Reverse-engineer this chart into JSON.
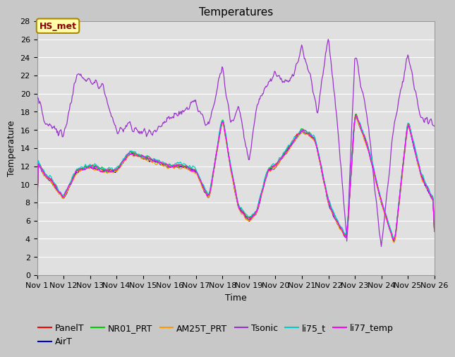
{
  "title": "Temperatures",
  "xlabel": "Time",
  "ylabel": "Temperature",
  "ylim": [
    0,
    28
  ],
  "yticks": [
    0,
    2,
    4,
    6,
    8,
    10,
    12,
    14,
    16,
    18,
    20,
    22,
    24,
    26,
    28
  ],
  "xtick_positions": [
    0,
    1,
    2,
    3,
    4,
    5,
    6,
    7,
    8,
    9,
    10,
    11,
    12,
    13,
    14,
    15
  ],
  "xtick_labels": [
    "Nov 1",
    "Nov 12",
    "Nov 13",
    "Nov 14",
    "Nov 15",
    "Nov 16",
    "Nov 17",
    "Nov 18",
    "Nov 19",
    "Nov 20",
    "Nov 21",
    "Nov 22",
    "Nov 23",
    "Nov 24",
    "Nov 25",
    "Nov 26"
  ],
  "series_colors": {
    "PanelT": "#ff0000",
    "AirT": "#0000cc",
    "NR01_PRT": "#00cc00",
    "AM25T_PRT": "#ff9900",
    "Tsonic": "#9933cc",
    "li75_t": "#00cccc",
    "li77_temp": "#ff00ff"
  },
  "annotation_text": "HS_met",
  "fig_bg_color": "#c8c8c8",
  "plot_bg_color": "#e0e0e0",
  "grid_color": "#ffffff",
  "title_fontsize": 11,
  "axis_fontsize": 9,
  "tick_fontsize": 8,
  "legend_fontsize": 9,
  "linewidth": 0.9
}
